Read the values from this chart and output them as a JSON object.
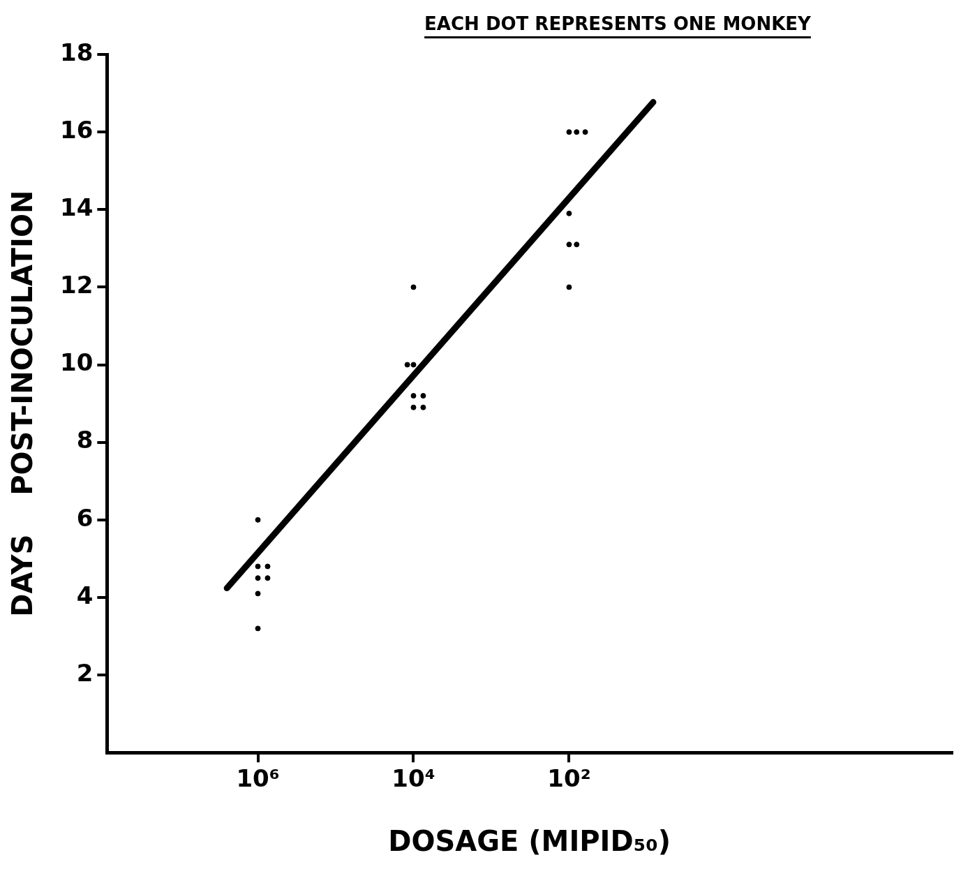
{
  "chart_data": {
    "type": "scatter",
    "annotations": [
      "EACH DOT REPRESENTS ONE MONKEY"
    ],
    "xlabel": "DOSAGE (MIPID₅₀)",
    "ylabel": "DAYS    POST-INOCULATION",
    "log": "x",
    "xlim": [
      87000000,
      0.0012
    ],
    "xticks": [
      {
        "value": 1000000,
        "label": "10⁶"
      },
      {
        "value": 10000,
        "label": "10⁴"
      },
      {
        "value": 100,
        "label": "10²"
      }
    ],
    "ylim": [
      0,
      18
    ],
    "yticks": [
      2,
      4,
      6,
      8,
      10,
      12,
      14,
      16,
      18
    ],
    "grid": false,
    "legend": false,
    "series": [
      {
        "type": "scatter",
        "color": "#000000",
        "marker": "circle",
        "x": [
          1000000,
          1000000,
          750000,
          1000000,
          750000,
          1000000,
          1000000,
          10000,
          12000,
          10000,
          10000,
          7500,
          10000,
          7500,
          100,
          80,
          62,
          100,
          100,
          80,
          100
        ],
        "values": [
          6,
          4.8,
          4.8,
          4.5,
          4.5,
          4.1,
          3.2,
          12,
          10,
          10,
          9.2,
          9.2,
          8.9,
          8.9,
          16,
          16,
          16,
          13.9,
          13.1,
          13.1,
          12
        ]
      },
      {
        "type": "line",
        "color": "#000000",
        "marker": "none",
        "line_style": "solid",
        "x": [
          2500000,
          8.3
        ],
        "values": [
          4.24,
          16.77
        ]
      }
    ]
  }
}
